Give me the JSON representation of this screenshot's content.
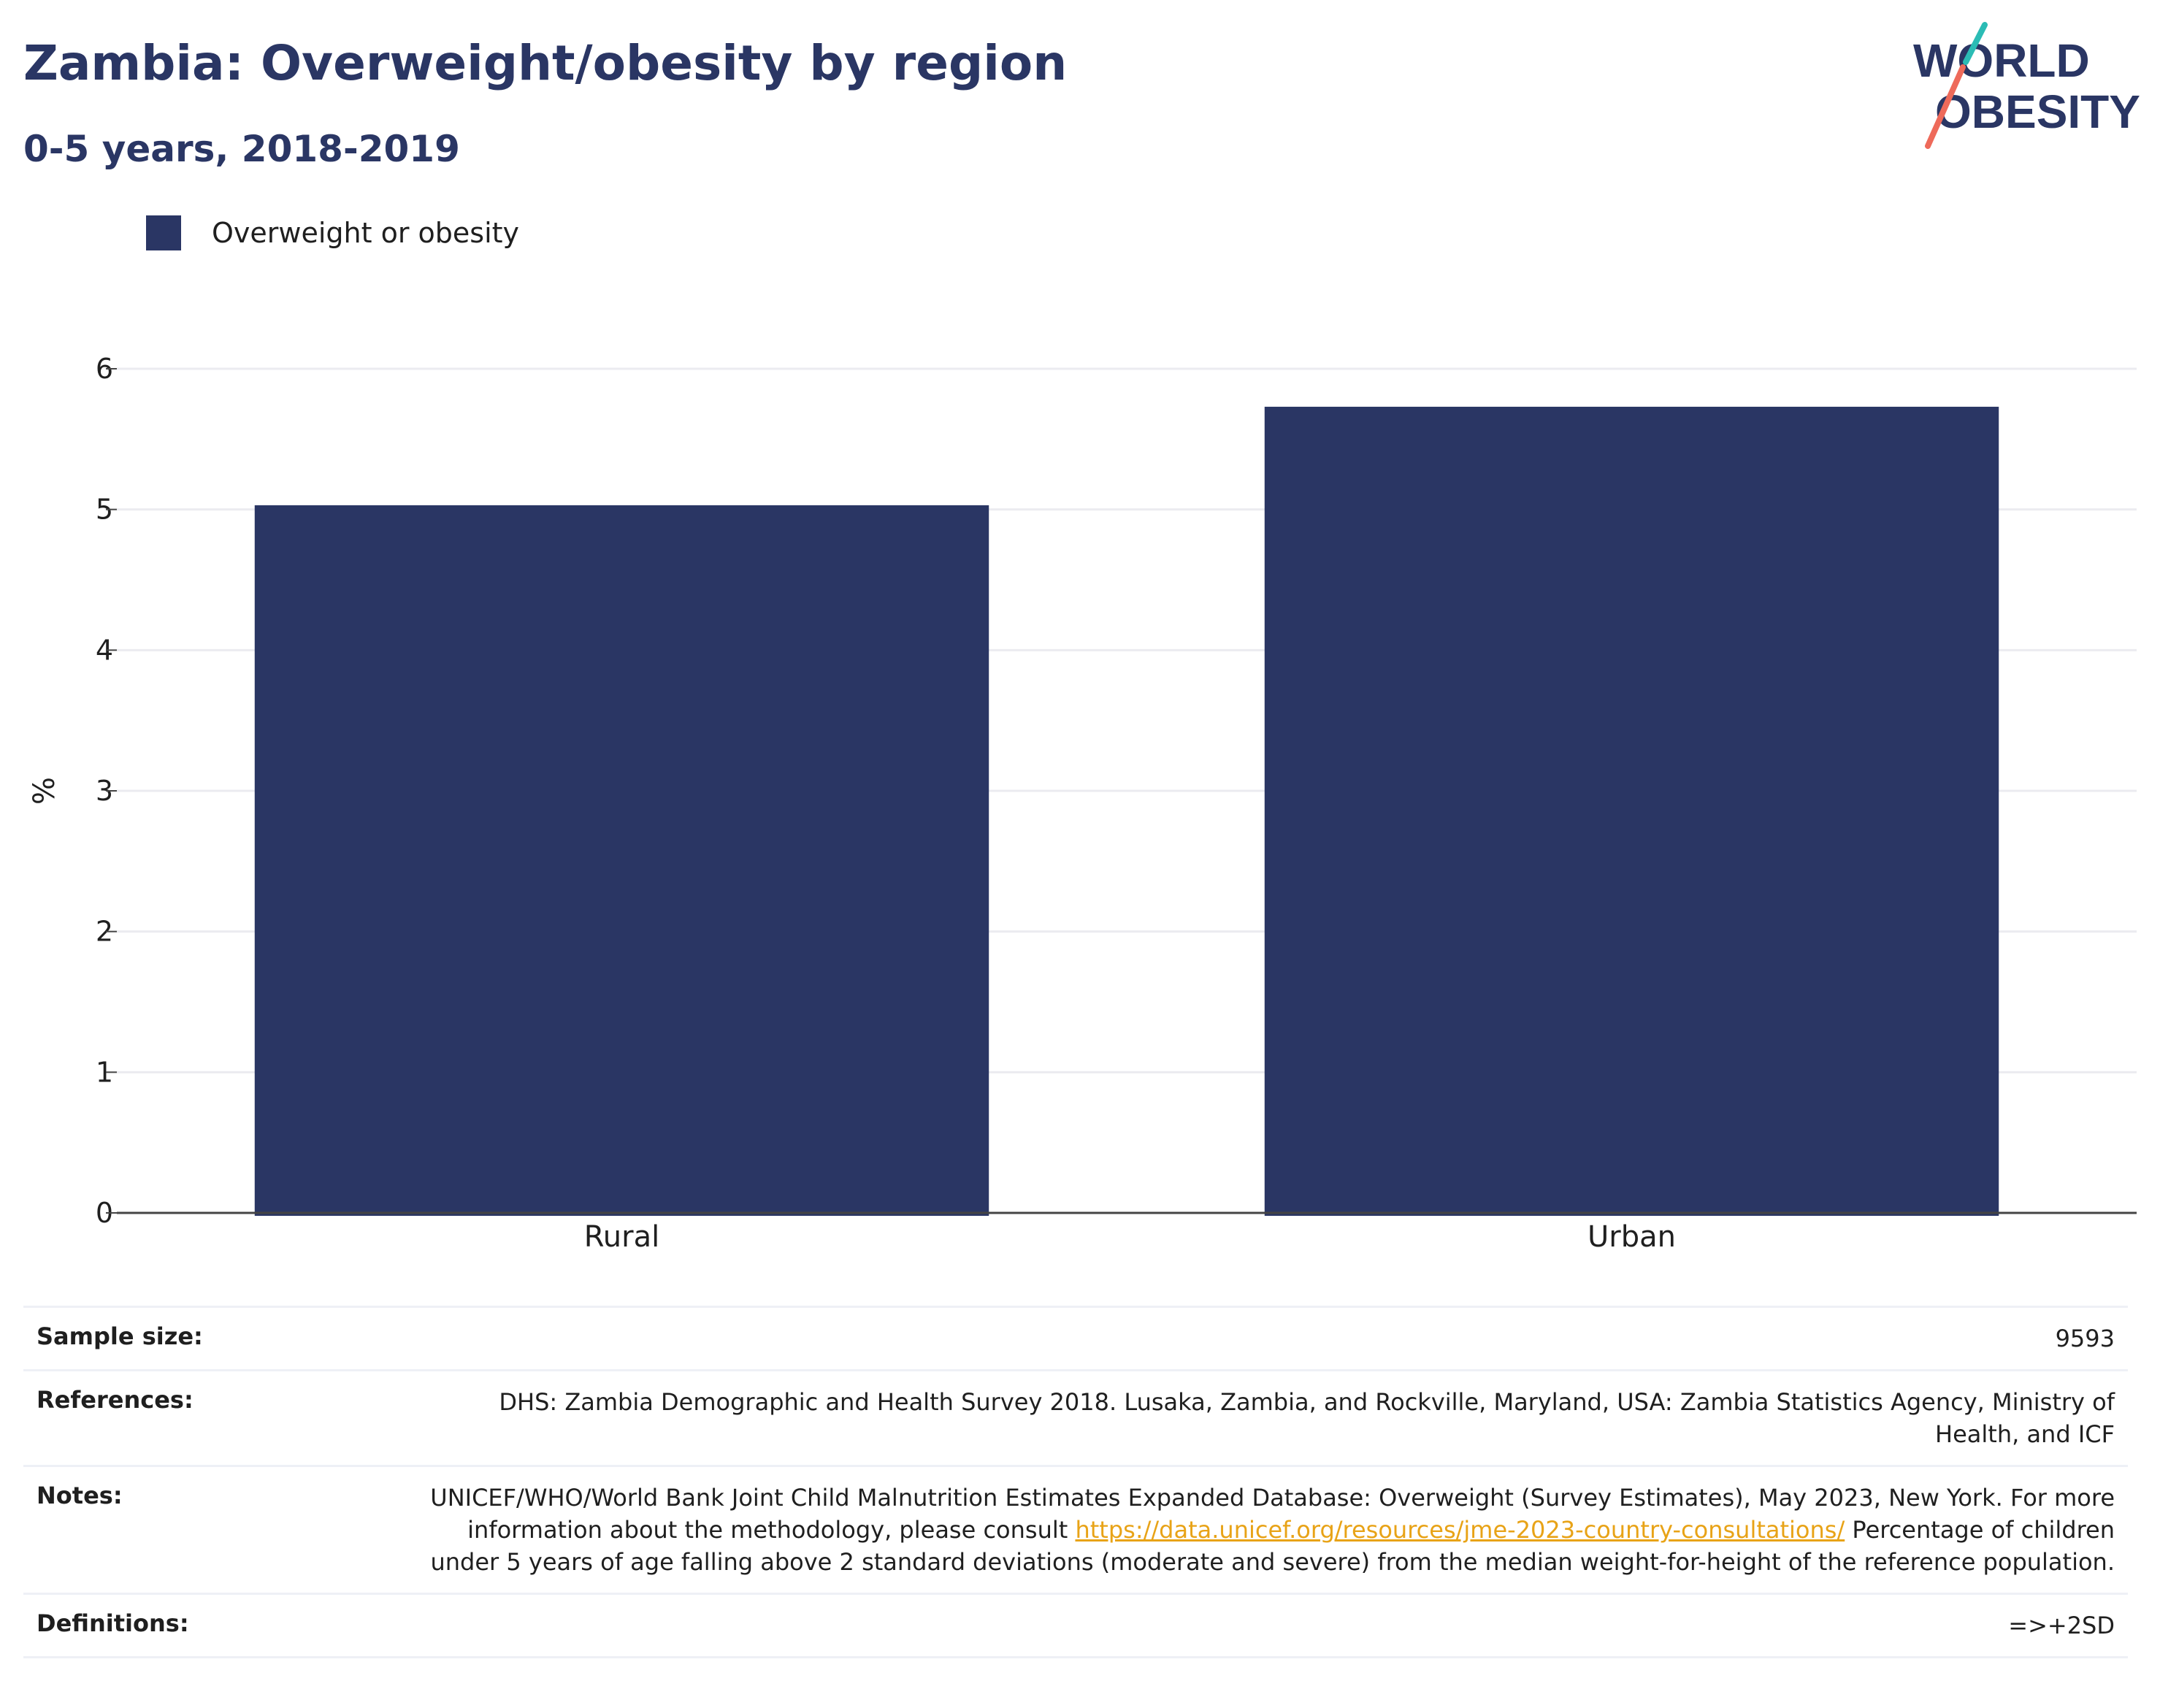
{
  "header": {
    "title": "Zambia: Overweight/obesity by region",
    "subtitle": "0-5 years, 2018-2019"
  },
  "logo": {
    "line1": "WORLD",
    "line2": "OBESITY"
  },
  "colors": {
    "bar": "#2a3664",
    "title": "#2a3664",
    "gridline": "#ebebf0",
    "axis": "#444444",
    "link": "#e8a317",
    "logo_teal": "#2bbcb5",
    "logo_coral": "#ee6a5a"
  },
  "legend": {
    "label": "Overweight or obesity"
  },
  "chart_data": {
    "type": "bar",
    "categories": [
      "Rural",
      "Urban"
    ],
    "series": [
      {
        "name": "Overweight or obesity",
        "values": [
          5.03,
          5.73
        ]
      }
    ],
    "ylabel": "%",
    "xlabel": "",
    "ylim": [
      0,
      6
    ],
    "yticks": [
      0,
      1,
      2,
      3,
      4,
      5,
      6
    ],
    "grid": true,
    "legend_position": "top-left"
  },
  "info": {
    "sample_size": {
      "label": "Sample size:",
      "value": "9593"
    },
    "references": {
      "label": "References:",
      "value": "DHS: Zambia Demographic and Health Survey 2018. Lusaka, Zambia, and Rockville, Maryland, USA: Zambia Statistics Agency, Ministry of Health, and ICF"
    },
    "notes": {
      "label": "Notes:",
      "text_before": "UNICEF/WHO/World Bank Joint Child Malnutrition Estimates Expanded Database: Overweight (Survey Estimates), May 2023, New York. For more information about the methodology, please consult ",
      "link": "https://data.unicef.org/resources/jme-2023-country-consultations/",
      "text_after": " Percentage of children under 5 years of age falling above 2 standard deviations (moderate and severe) from the median weight-for-height of the reference population."
    },
    "definitions": {
      "label": "Definitions:",
      "value": "=>+2SD"
    }
  }
}
